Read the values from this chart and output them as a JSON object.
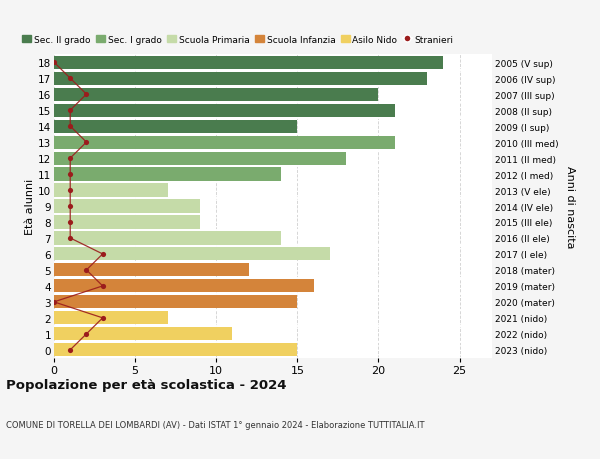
{
  "ages": [
    18,
    17,
    16,
    15,
    14,
    13,
    12,
    11,
    10,
    9,
    8,
    7,
    6,
    5,
    4,
    3,
    2,
    1,
    0
  ],
  "years_labels": [
    "2005 (V sup)",
    "2006 (IV sup)",
    "2007 (III sup)",
    "2008 (II sup)",
    "2009 (I sup)",
    "2010 (III med)",
    "2011 (II med)",
    "2012 (I med)",
    "2013 (V ele)",
    "2014 (IV ele)",
    "2015 (III ele)",
    "2016 (II ele)",
    "2017 (I ele)",
    "2018 (mater)",
    "2019 (mater)",
    "2020 (mater)",
    "2021 (nido)",
    "2022 (nido)",
    "2023 (nido)"
  ],
  "bar_values": [
    24,
    23,
    20,
    21,
    15,
    21,
    18,
    14,
    7,
    9,
    9,
    14,
    17,
    12,
    16,
    15,
    7,
    11,
    15
  ],
  "bar_colors": [
    "#4a7c4e",
    "#4a7c4e",
    "#4a7c4e",
    "#4a7c4e",
    "#4a7c4e",
    "#7aab6e",
    "#7aab6e",
    "#7aab6e",
    "#c5dba8",
    "#c5dba8",
    "#c5dba8",
    "#c5dba8",
    "#c5dba8",
    "#d4843a",
    "#d4843a",
    "#d4843a",
    "#f0d060",
    "#f0d060",
    "#f0d060"
  ],
  "stranieri_values": [
    0,
    1,
    2,
    1,
    1,
    2,
    1,
    1,
    1,
    1,
    1,
    1,
    3,
    2,
    3,
    0,
    3,
    2,
    1
  ],
  "legend_labels": [
    "Sec. II grado",
    "Sec. I grado",
    "Scuola Primaria",
    "Scuola Infanzia",
    "Asilo Nido",
    "Stranieri"
  ],
  "legend_colors": [
    "#4a7c4e",
    "#7aab6e",
    "#c5dba8",
    "#d4843a",
    "#f0d060",
    "#9b1c1c"
  ],
  "title": "Popolazione per età scolastica - 2024",
  "subtitle": "COMUNE DI TORELLA DEI LOMBARDI (AV) - Dati ISTAT 1° gennaio 2024 - Elaborazione TUTTITALIA.IT",
  "ylabel_left": "Età alunni",
  "ylabel_right": "Anni di nascita",
  "xlim": [
    0,
    27
  ],
  "xticks": [
    0,
    5,
    10,
    15,
    20,
    25
  ],
  "background_color": "#f5f5f5",
  "bar_background": "#ffffff",
  "grid_color": "#d0d0d0",
  "stranieri_color": "#9b1c1c",
  "stranieri_line_color": "#9b1c1c"
}
